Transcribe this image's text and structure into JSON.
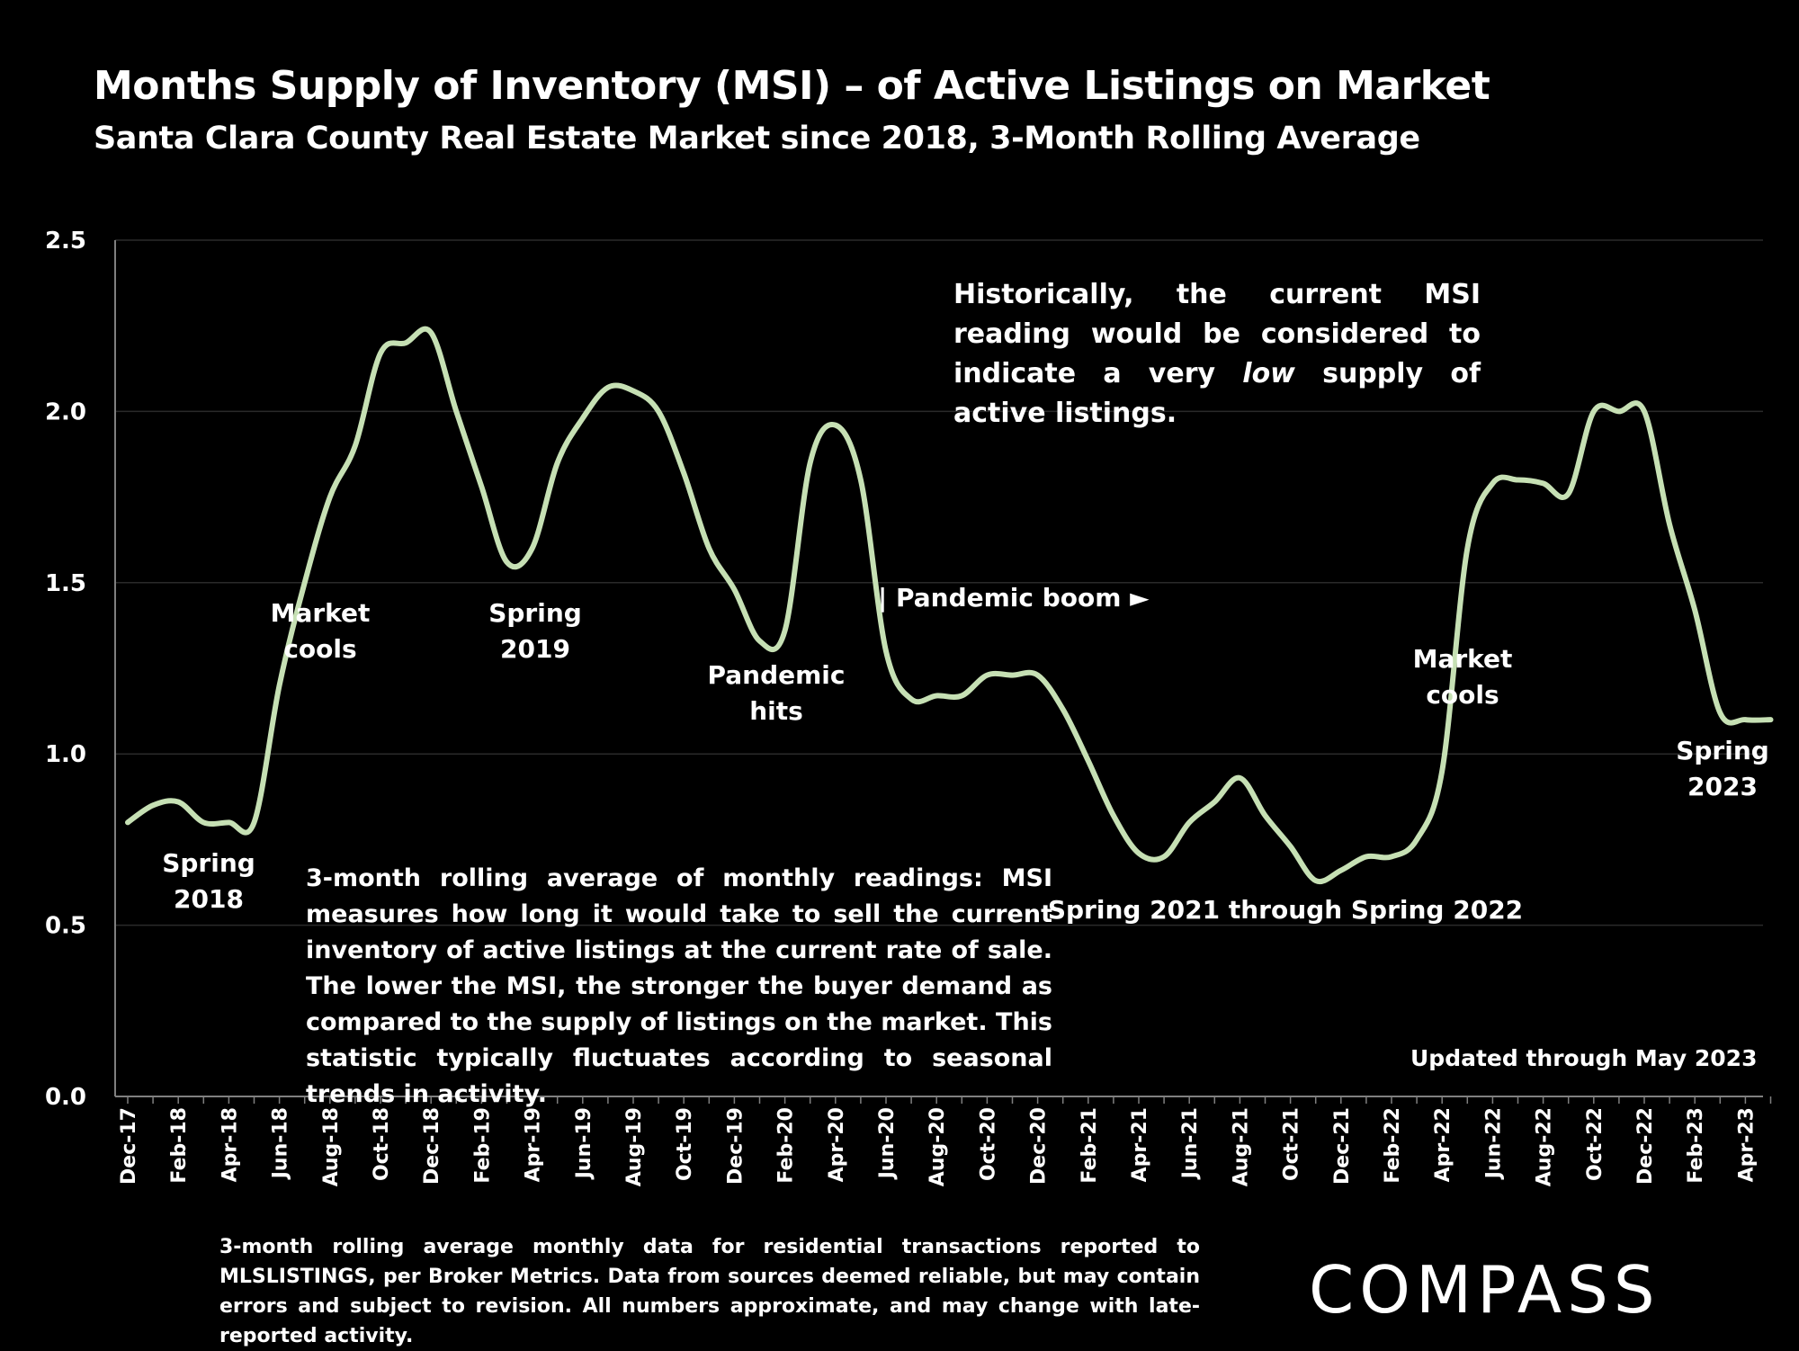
{
  "title": "Months Supply of Inventory (MSI) – of Active Listings on Market",
  "subtitle": "Santa Clara County Real Estate Market since 2018, 3-Month Rolling Average",
  "colors": {
    "background": "#000000",
    "line": "#c6e0b4",
    "text": "#ffffff",
    "grid": "#2a2a2a"
  },
  "chart_data": {
    "type": "line",
    "title": "Months Supply of Inventory (MSI) – of Active Listings on Market",
    "ylim": [
      0,
      2.5
    ],
    "yticks": [
      "0.0",
      "0.5",
      "1.0",
      "1.5",
      "2.0",
      "2.5"
    ],
    "ytick_values": [
      0,
      0.5,
      1.0,
      1.5,
      2.0,
      2.5
    ],
    "x": [
      "Dec-17",
      "Jan-18",
      "Feb-18",
      "Mar-18",
      "Apr-18",
      "May-18",
      "Jun-18",
      "Jul-18",
      "Aug-18",
      "Sep-18",
      "Oct-18",
      "Nov-18",
      "Dec-18",
      "Jan-19",
      "Feb-19",
      "Mar-19",
      "Apr-19",
      "May-19",
      "Jun-19",
      "Jul-19",
      "Aug-19",
      "Sep-19",
      "Oct-19",
      "Nov-19",
      "Dec-19",
      "Jan-20",
      "Feb-20",
      "Mar-20",
      "Apr-20",
      "May-20",
      "Jun-20",
      "Jul-20",
      "Aug-20",
      "Sep-20",
      "Oct-20",
      "Nov-20",
      "Dec-20",
      "Jan-21",
      "Feb-21",
      "Mar-21",
      "Apr-21",
      "May-21",
      "Jun-21",
      "Jul-21",
      "Aug-21",
      "Sep-21",
      "Oct-21",
      "Nov-21",
      "Dec-21",
      "Jan-22",
      "Feb-22",
      "Mar-22",
      "Apr-22",
      "May-22",
      "Jun-22",
      "Jul-22",
      "Aug-22",
      "Sep-22",
      "Oct-22",
      "Nov-22",
      "Dec-22",
      "Jan-23",
      "Feb-23",
      "Mar-23",
      "Apr-23",
      "May-23"
    ],
    "xtick_labels": [
      "Dec-17",
      "Feb-18",
      "Apr-18",
      "Jun-18",
      "Aug-18",
      "Oct-18",
      "Dec-18",
      "Feb-19",
      "Apr-19",
      "Jun-19",
      "Aug-19",
      "Oct-19",
      "Dec-19",
      "Feb-20",
      "Apr-20",
      "Jun-20",
      "Aug-20",
      "Oct-20",
      "Dec-20",
      "Feb-21",
      "Apr-21",
      "Jun-21",
      "Aug-21",
      "Oct-21",
      "Dec-21",
      "Feb-22",
      "Apr-22",
      "Jun-22",
      "Aug-22",
      "Oct-22",
      "Dec-22",
      "Feb-23",
      "Apr-23"
    ],
    "series": [
      {
        "values": [
          0.8,
          0.85,
          0.86,
          0.8,
          0.8,
          0.8,
          1.2,
          1.5,
          1.75,
          1.9,
          2.17,
          2.2,
          2.23,
          2.0,
          1.78,
          1.56,
          1.6,
          1.85,
          1.98,
          2.07,
          2.06,
          2.0,
          1.82,
          1.6,
          1.48,
          1.33,
          1.36,
          1.85,
          1.96,
          1.8,
          1.3,
          1.16,
          1.17,
          1.17,
          1.23,
          1.23,
          1.23,
          1.13,
          0.98,
          0.82,
          0.71,
          0.7,
          0.8,
          0.86,
          0.93,
          0.82,
          0.73,
          0.63,
          0.66,
          0.7,
          0.7,
          0.75,
          0.95,
          1.6,
          1.79,
          1.8,
          1.79,
          1.76,
          2.0,
          2.0,
          2.0,
          1.67,
          1.42,
          1.12,
          1.1,
          1.1
        ]
      }
    ],
    "annotations": [
      {
        "id": "spring-2018",
        "lines": [
          "Spring",
          "2018"
        ]
      },
      {
        "id": "market-cools-2018",
        "lines": [
          "Market",
          "cools"
        ]
      },
      {
        "id": "spring-2019",
        "lines": [
          "Spring",
          "2019"
        ]
      },
      {
        "id": "pandemic-hits",
        "lines": [
          "Pandemic",
          "hits"
        ]
      },
      {
        "id": "spring-2021-2022",
        "lines": [
          "Spring 2021 through Spring 2022"
        ]
      },
      {
        "id": "market-cools-2022",
        "lines": [
          "Market",
          "cools"
        ]
      },
      {
        "id": "spring-2023",
        "lines": [
          "Spring",
          "2023"
        ]
      }
    ],
    "pandemic_boom": "| Pandemic boom ►",
    "note_historical": {
      "before": "Historically, the current MSI reading would be considered to indicate a very ",
      "emph": "low",
      "after": " supply of active listings."
    },
    "note_definition": "3-month rolling average of monthly readings: MSI measures how long it would take to sell the current inventory of active listings at the current rate of sale. The lower the MSI, the stronger the buyer demand as compared to the supply of listings on the market. This statistic typically fluctuates according to seasonal trends in activity.",
    "updated": "Updated through May 2023"
  },
  "footer": "3-month rolling average monthly data for residential transactions reported to MLSLISTINGS, per Broker Metrics. Data from sources deemed reliable, but may contain errors and subject to revision. All numbers approximate, and may change with late-reported activity.",
  "logo": "COMPASS"
}
